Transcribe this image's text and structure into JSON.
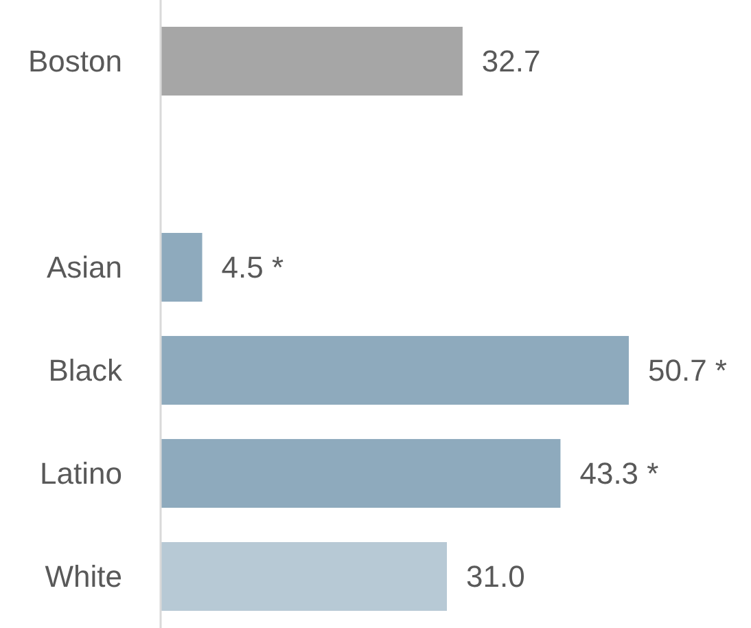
{
  "chart_data": {
    "type": "bar",
    "orientation": "horizontal",
    "categories": [
      "Boston",
      null,
      "Asian",
      "Black",
      "Latino",
      "White"
    ],
    "values": [
      32.7,
      null,
      4.5,
      50.7,
      43.3,
      31.0
    ],
    "colors": [
      "#a6a6a6",
      null,
      "#8eaabd",
      "#8eaabd",
      "#8eaabd",
      "#b7c9d5"
    ],
    "value_labels": [
      "32.7",
      null,
      "4.5 *",
      "50.7 *",
      "43.3 *",
      "31.0"
    ]
  }
}
